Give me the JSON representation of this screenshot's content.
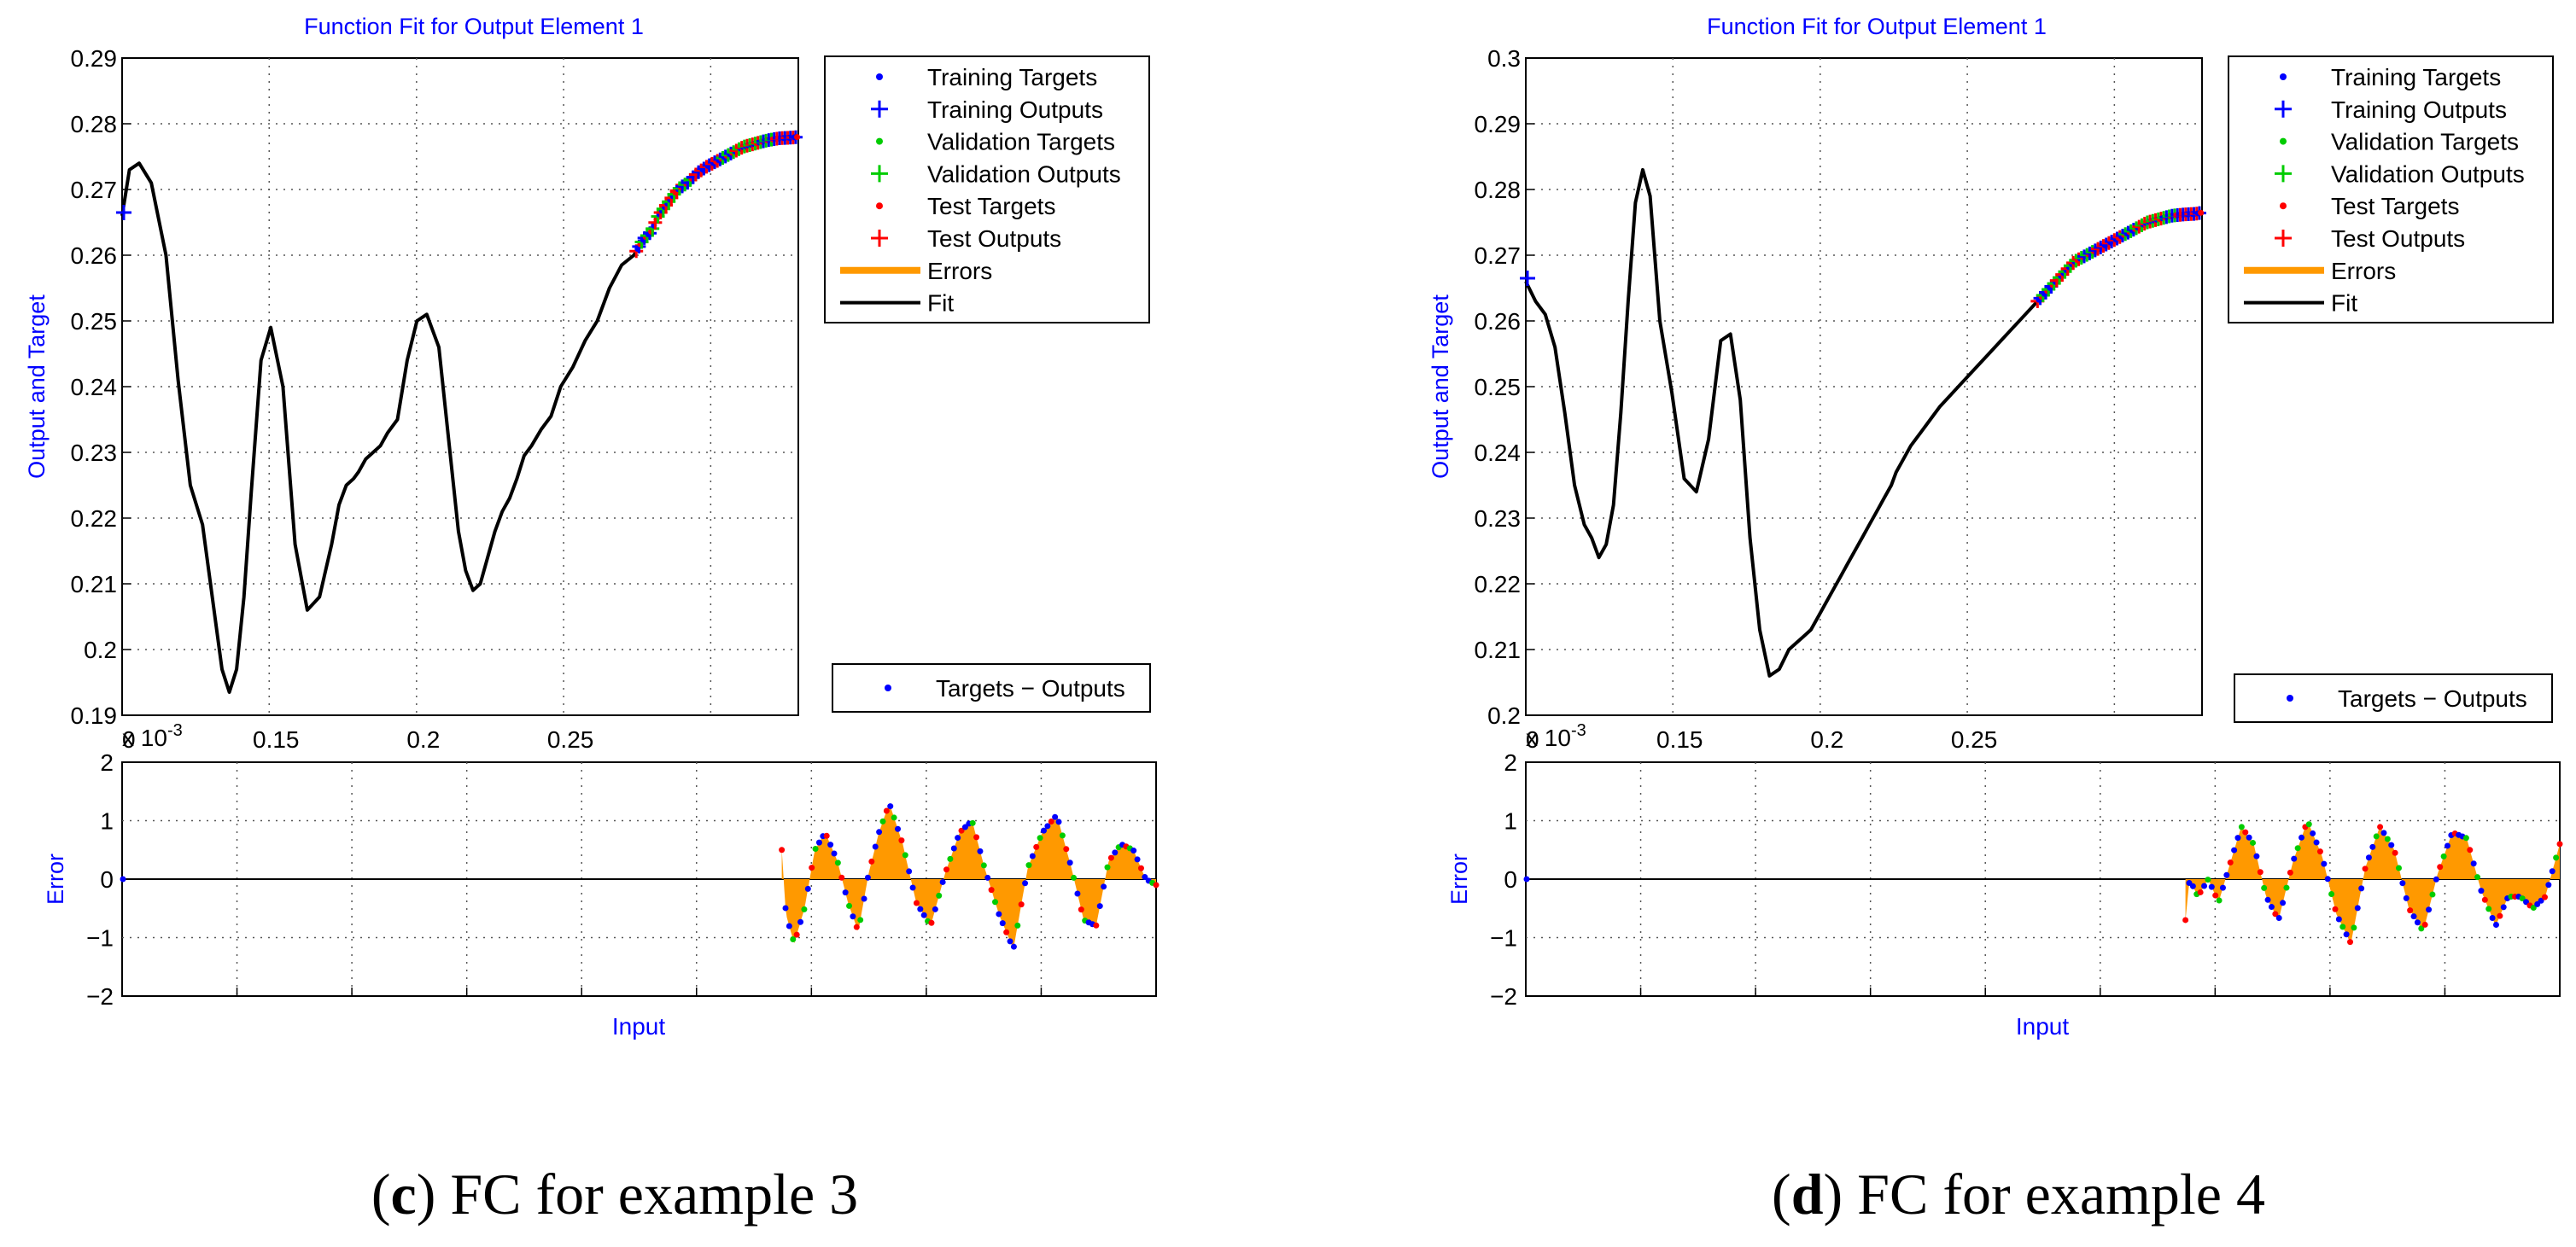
{
  "panels": [
    {
      "caption_letter": "c",
      "caption_text": " FC for example 3",
      "chart_data": {
        "type": "line",
        "top": {
          "title": "Function Fit for Output Element 1",
          "ylabel": "Output and Target",
          "xlim": [
            0,
            0.2775
          ],
          "ylim": [
            0.19,
            0.29
          ],
          "yticks": [
            "0.19",
            "0.2",
            "0.21",
            "0.22",
            "0.23",
            "0.24",
            "0.25",
            "0.26",
            "0.27",
            "0.28",
            "0.29"
          ],
          "xticks": [
            "0",
            "0.15",
            "0.2",
            "0.25"
          ],
          "x_exponent_label": "x 10",
          "x_exponent": "-3",
          "fit_x": [
            0.0,
            0.003,
            0.007,
            0.012,
            0.018,
            0.023,
            0.028,
            0.033,
            0.037,
            0.041,
            0.044,
            0.047,
            0.05,
            0.053,
            0.057,
            0.061,
            0.066,
            0.071,
            0.076,
            0.081,
            0.086,
            0.089,
            0.092,
            0.095,
            0.097,
            0.1,
            0.103,
            0.106,
            0.109,
            0.113,
            0.117,
            0.121,
            0.125,
            0.13,
            0.134,
            0.138,
            0.141,
            0.144,
            0.147,
            0.15,
            0.153,
            0.156,
            0.159,
            0.162,
            0.165,
            0.168,
            0.172,
            0.176,
            0.18,
            0.185,
            0.19,
            0.195,
            0.2,
            0.205,
            0.21,
            0.214,
            0.217,
            0.22,
            0.224,
            0.228,
            0.232,
            0.236,
            0.24,
            0.245,
            0.25,
            0.255,
            0.26,
            0.265,
            0.27,
            0.275,
            0.2775
          ],
          "fit_y": [
            0.266,
            0.273,
            0.274,
            0.271,
            0.26,
            0.241,
            0.225,
            0.219,
            0.208,
            0.197,
            0.1935,
            0.197,
            0.208,
            0.224,
            0.244,
            0.249,
            0.24,
            0.216,
            0.206,
            0.208,
            0.216,
            0.222,
            0.225,
            0.226,
            0.227,
            0.229,
            0.23,
            0.231,
            0.233,
            0.235,
            0.244,
            0.25,
            0.251,
            0.246,
            0.232,
            0.218,
            0.212,
            0.209,
            0.21,
            0.214,
            0.218,
            0.221,
            0.223,
            0.226,
            0.2295,
            0.231,
            0.2335,
            0.2355,
            0.24,
            0.243,
            0.247,
            0.25,
            0.255,
            0.2585,
            0.26,
            0.2625,
            0.2635,
            0.266,
            0.268,
            0.27,
            0.271,
            0.2725,
            0.2735,
            0.2745,
            0.2755,
            0.2765,
            0.277,
            0.2775,
            0.2778,
            0.2779,
            0.278
          ],
          "points_start_x": 0.211,
          "points_end_x": 0.277,
          "initial_point": [
            0.0,
            0.2665
          ],
          "legend": [
            {
              "label": "Training Targets",
              "color": "#0000ff",
              "marker": "dot"
            },
            {
              "label": "Training Outputs",
              "color": "#0000ff",
              "marker": "plus"
            },
            {
              "label": "Validation Targets",
              "color": "#00cc00",
              "marker": "dot"
            },
            {
              "label": "Validation Outputs",
              "color": "#00cc00",
              "marker": "plus"
            },
            {
              "label": "Test Targets",
              "color": "#ff0000",
              "marker": "dot"
            },
            {
              "label": "Test Outputs",
              "color": "#ff0000",
              "marker": "plus"
            },
            {
              "label": "Errors",
              "color": "#ff9900",
              "marker": "thick"
            },
            {
              "label": "Fit",
              "color": "#000000",
              "marker": "line"
            }
          ]
        },
        "bottom": {
          "ylabel": "Error",
          "xlabel": "Input",
          "ylim": [
            -2,
            2
          ],
          "yticks": [
            "2",
            "1",
            "0",
            "−1",
            "−2"
          ],
          "legend": [
            {
              "label": "Targets − Outputs",
              "color": "#0000ff",
              "marker": "dot"
            }
          ],
          "error_start": 0.638,
          "error_x": [
            0.638,
            0.642,
            0.65,
            0.66,
            0.67,
            0.68,
            0.692,
            0.702,
            0.712,
            0.722,
            0.732,
            0.742,
            0.755,
            0.768,
            0.782,
            0.796,
            0.81,
            0.822,
            0.834,
            0.848,
            0.862,
            0.876,
            0.89,
            0.904,
            0.918,
            0.93,
            0.942,
            0.954,
            0.966,
            0.978,
            0.99,
            1.0
          ],
          "error_y": [
            0.5,
            -0.6,
            -1.1,
            -0.5,
            0.5,
            0.8,
            0.3,
            -0.4,
            -0.9,
            0.1,
            0.8,
            1.3,
            0.6,
            -0.4,
            -0.8,
            0.1,
            0.8,
            1.0,
            0.2,
            -0.6,
            -1.2,
            0.2,
            0.8,
            1.1,
            0.2,
            -0.7,
            -0.8,
            0.3,
            0.6,
            0.5,
            0.0,
            -0.1
          ]
        }
      }
    },
    {
      "caption_letter": "d",
      "caption_text": " FC for example 4",
      "chart_data": {
        "type": "line",
        "top": {
          "title": "Function Fit for Output Element 1",
          "ylabel": "Output and Target",
          "xlim": [
            0,
            0.2775
          ],
          "ylim": [
            0.2,
            0.3
          ],
          "yticks": [
            "0.2",
            "0.21",
            "0.22",
            "0.23",
            "0.24",
            "0.25",
            "0.26",
            "0.27",
            "0.28",
            "0.29",
            "0.3"
          ],
          "xticks": [
            "0",
            "0.15",
            "0.2",
            "0.25"
          ],
          "x_exponent_label": "x 10",
          "x_exponent": "-3",
          "fit_x": [
            0.0,
            0.004,
            0.008,
            0.012,
            0.016,
            0.02,
            0.024,
            0.027,
            0.03,
            0.033,
            0.036,
            0.039,
            0.042,
            0.045,
            0.048,
            0.051,
            0.055,
            0.06,
            0.065,
            0.07,
            0.075,
            0.08,
            0.084,
            0.088,
            0.092,
            0.096,
            0.1,
            0.104,
            0.108,
            0.111,
            0.114,
            0.117,
            0.12,
            0.123,
            0.126,
            0.129,
            0.132,
            0.135,
            0.138,
            0.141,
            0.144,
            0.147,
            0.15,
            0.152,
            0.155,
            0.158,
            0.162,
            0.166,
            0.17,
            0.175,
            0.18,
            0.185,
            0.19,
            0.195,
            0.2,
            0.205,
            0.21,
            0.215,
            0.22,
            0.225,
            0.23,
            0.235,
            0.24,
            0.245,
            0.25,
            0.255,
            0.26,
            0.265,
            0.27,
            0.275,
            0.2775
          ],
          "fit_y": [
            0.266,
            0.263,
            0.261,
            0.256,
            0.246,
            0.235,
            0.229,
            0.227,
            0.224,
            0.226,
            0.232,
            0.246,
            0.263,
            0.278,
            0.283,
            0.279,
            0.26,
            0.249,
            0.236,
            0.234,
            0.242,
            0.257,
            0.258,
            0.248,
            0.227,
            0.213,
            0.206,
            0.207,
            0.21,
            0.211,
            0.212,
            0.213,
            0.215,
            0.217,
            0.219,
            0.221,
            0.223,
            0.225,
            0.227,
            0.229,
            0.231,
            0.233,
            0.235,
            0.237,
            0.239,
            0.241,
            0.243,
            0.245,
            0.247,
            0.249,
            0.251,
            0.253,
            0.255,
            0.257,
            0.259,
            0.261,
            0.263,
            0.265,
            0.267,
            0.269,
            0.27,
            0.271,
            0.272,
            0.273,
            0.274,
            0.275,
            0.2755,
            0.276,
            0.2762,
            0.2763,
            0.2765
          ],
          "points_start_x": 0.21,
          "points_end_x": 0.277,
          "initial_point": [
            0.0,
            0.2665
          ],
          "legend": [
            {
              "label": "Training Targets",
              "color": "#0000ff",
              "marker": "dot"
            },
            {
              "label": "Training Outputs",
              "color": "#0000ff",
              "marker": "plus"
            },
            {
              "label": "Validation Targets",
              "color": "#00cc00",
              "marker": "dot"
            },
            {
              "label": "Validation Outputs",
              "color": "#00cc00",
              "marker": "plus"
            },
            {
              "label": "Test Targets",
              "color": "#ff0000",
              "marker": "dot"
            },
            {
              "label": "Test Outputs",
              "color": "#ff0000",
              "marker": "plus"
            },
            {
              "label": "Errors",
              "color": "#ff9900",
              "marker": "thick"
            },
            {
              "label": "Fit",
              "color": "#000000",
              "marker": "line"
            }
          ]
        },
        "bottom": {
          "ylabel": "Error",
          "xlabel": "Input",
          "ylim": [
            -2,
            2
          ],
          "yticks": [
            "2",
            "1",
            "0",
            "−1",
            "−2"
          ],
          "legend": [
            {
              "label": "Targets − Outputs",
              "color": "#0000ff",
              "marker": "dot"
            }
          ],
          "error_start": 0.638,
          "error_x": [
            0.638,
            0.642,
            0.65,
            0.66,
            0.67,
            0.68,
            0.692,
            0.704,
            0.716,
            0.728,
            0.742,
            0.756,
            0.77,
            0.784,
            0.798,
            0.812,
            0.826,
            0.84,
            0.854,
            0.868,
            0.882,
            0.896,
            0.91,
            0.924,
            0.938,
            0.95,
            0.962,
            0.974,
            0.986,
            1.0
          ],
          "error_y": [
            -0.7,
            0.0,
            -0.3,
            0.0,
            -0.4,
            0.2,
            0.9,
            0.6,
            -0.3,
            -0.7,
            0.3,
            1.0,
            0.4,
            -0.6,
            -1.1,
            0.2,
            0.9,
            0.5,
            -0.5,
            -0.9,
            0.1,
            0.8,
            0.7,
            -0.2,
            -0.8,
            -0.3,
            -0.3,
            -0.5,
            -0.3,
            0.6
          ]
        }
      }
    }
  ]
}
